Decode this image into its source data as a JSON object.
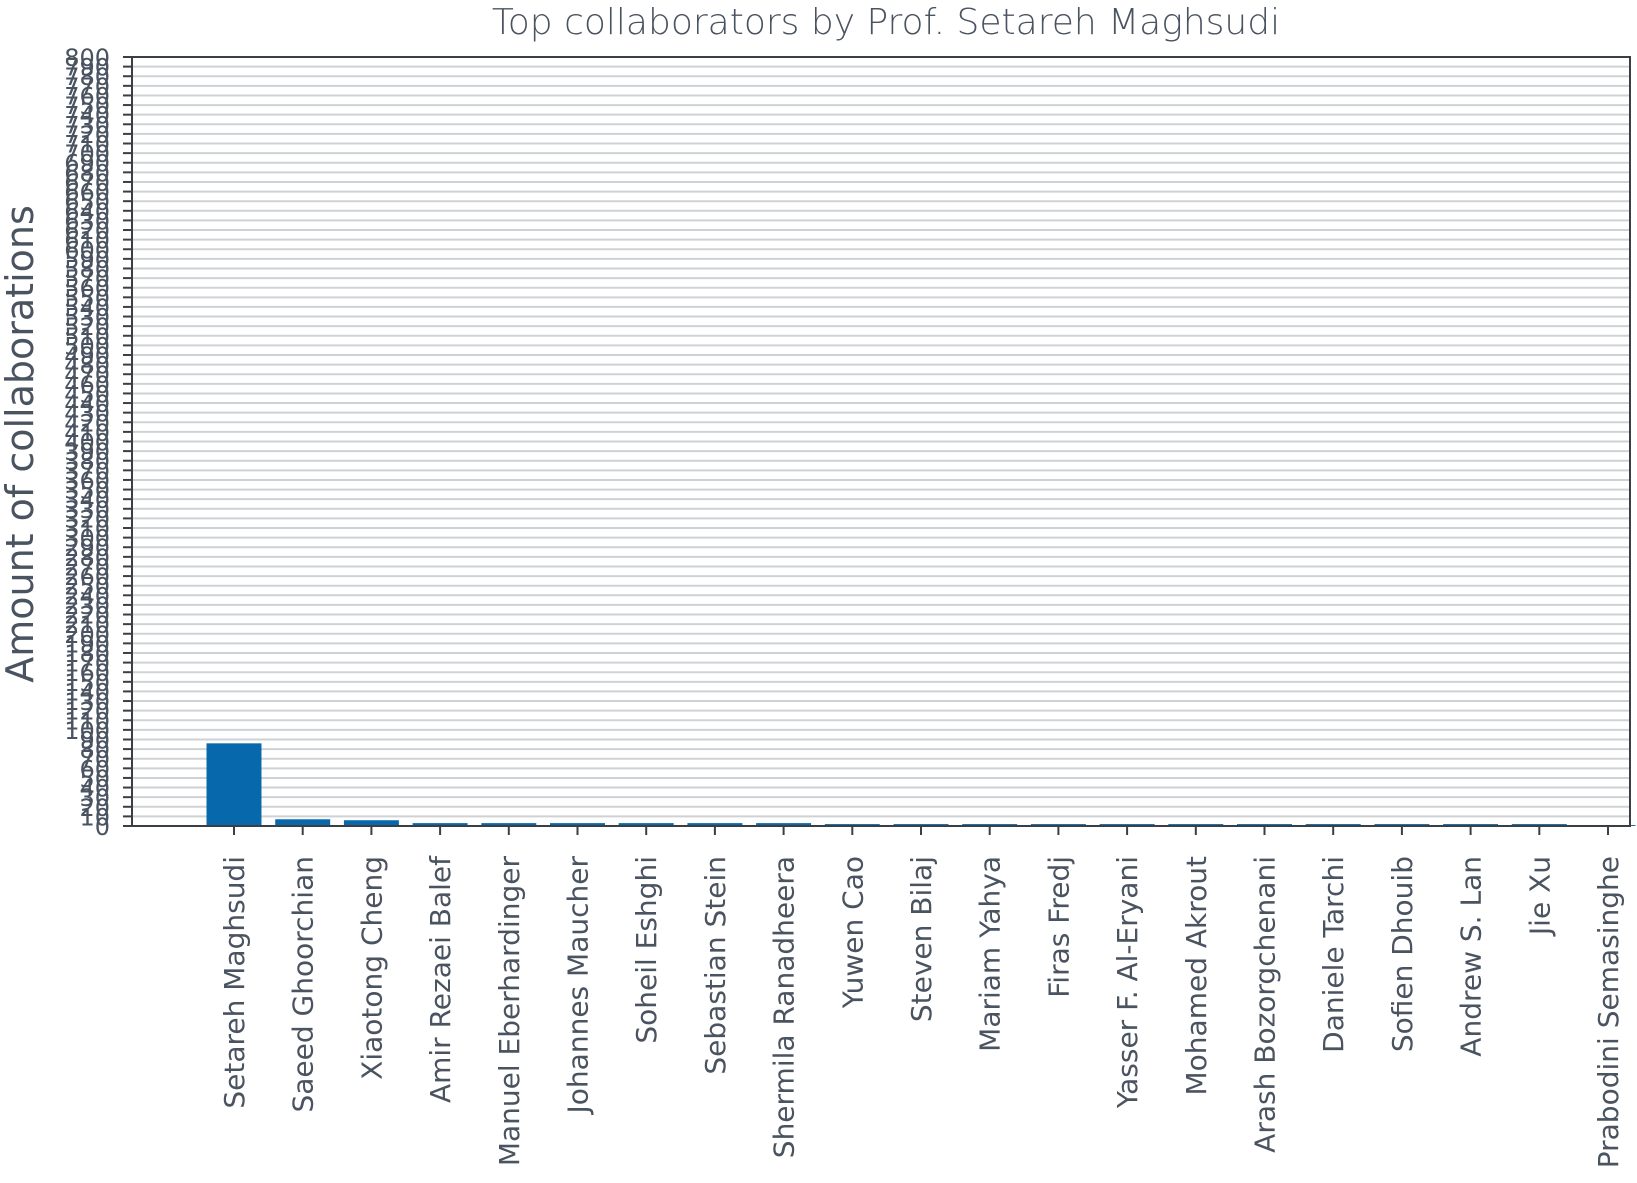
{
  "chart_data": {
    "type": "bar",
    "title": "Top collaborators by Prof. Setareh Maghsudi",
    "ylabel": "Amount of collaborations",
    "xlabel": "",
    "ylim": [
      0,
      800
    ],
    "ytick_step": 10,
    "grid": true,
    "colors": {
      "bar": "#0868ac",
      "grid": "#cfd2d5",
      "axis": "#3a3f45",
      "text": "#4a5360"
    },
    "categories": [
      "Setareh Maghsudi",
      "Saeed Ghoorchian",
      "Xiaotong Cheng",
      "Amir Rezaei Balef",
      "Manuel Eberhardinger",
      "Johannes Maucher",
      "Soheil Eshghi",
      "Sebastian Stein",
      "Shermila Ranadheera",
      "Yuwen Cao",
      "Steven Bilaj",
      "Mariam Yahya",
      "Firas Fredj",
      "Yasser F. Al-Eryani",
      "Mohamed Akrout",
      "Arash Bozorgchenani",
      "Daniele Tarchi",
      "Sofien Dhouib",
      "Andrew S. Lan",
      "Jie Xu",
      "Prabodini Semasinghe"
    ],
    "values": [
      86,
      7,
      6,
      3,
      3,
      3,
      3,
      3,
      3,
      2,
      2,
      2,
      2,
      2,
      2,
      2,
      2,
      2,
      2,
      2,
      1
    ]
  }
}
